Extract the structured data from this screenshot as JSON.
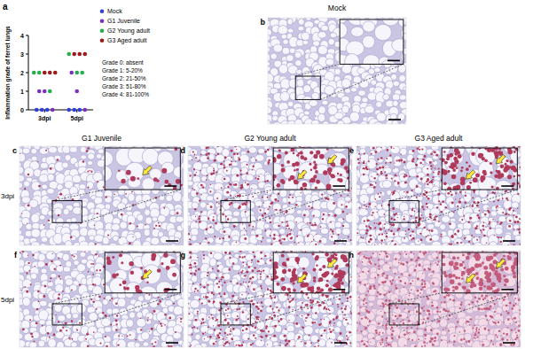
{
  "figure": {
    "panel_a_label": "a",
    "mock": {
      "label": "b",
      "title": "Mock"
    },
    "columns": [
      "G1 Juvenile",
      "G2 Young adult",
      "G3 Aged adult"
    ],
    "rows": [
      {
        "label": "3dpi",
        "panels": [
          "c",
          "d",
          "e"
        ]
      },
      {
        "label": "5dpi",
        "panels": [
          "f",
          "g",
          "h"
        ]
      }
    ]
  },
  "chart_data": {
    "type": "scatter",
    "y_label": "Inflammation grade of ferret lungs",
    "categories": [
      "3dpi",
      "5dpi"
    ],
    "ylim": [
      0,
      4
    ],
    "yticks": [
      0,
      1,
      2,
      3,
      4
    ],
    "legend": "right",
    "series": [
      {
        "name": "Mock",
        "color": "#2f3fe0",
        "marker": "circle",
        "x": [
          "3dpi",
          "3dpi",
          "3dpi",
          "5dpi",
          "5dpi",
          "5dpi"
        ],
        "values": [
          0,
          0,
          0,
          0,
          0,
          0
        ]
      },
      {
        "name": "G1 Juvenile",
        "color": "#7b2fbf",
        "marker": "circle",
        "x": [
          "3dpi",
          "3dpi",
          "3dpi",
          "5dpi",
          "5dpi",
          "5dpi"
        ],
        "values": [
          0,
          1,
          1,
          0,
          1,
          2
        ]
      },
      {
        "name": "G2 Young adult",
        "color": "#22b04a",
        "marker": "circle",
        "x": [
          "3dpi",
          "3dpi",
          "3dpi",
          "5dpi",
          "5dpi",
          "5dpi"
        ],
        "values": [
          1,
          2,
          2,
          2,
          2,
          3
        ]
      },
      {
        "name": "G3 Aged adult",
        "color": "#a01818",
        "marker": "circle",
        "x": [
          "3dpi",
          "3dpi",
          "3dpi",
          "5dpi",
          "5dpi",
          "5dpi"
        ],
        "values": [
          2,
          2,
          2,
          3,
          3,
          3
        ]
      }
    ],
    "annotations": [
      "Grade 0: absent",
      "Grade 1: 5-20%",
      "Grade 2: 21-50%",
      "Grade 3: 51-80%",
      "Grade 4: 81-100%"
    ]
  }
}
